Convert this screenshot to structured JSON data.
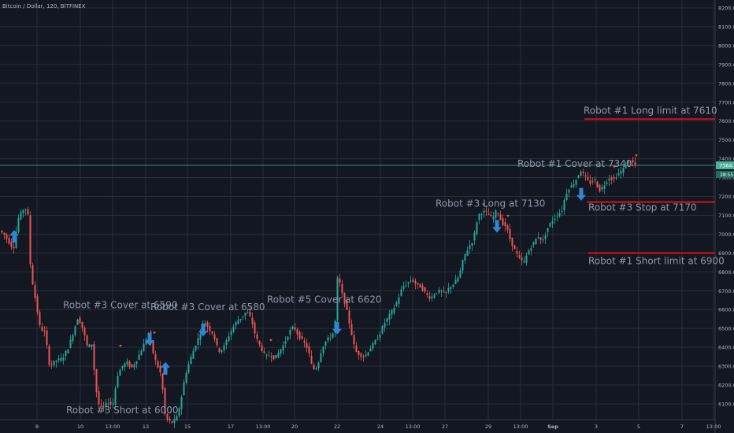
{
  "header": {
    "title": "Bitcoin / Dollar, 120, BITFINEX"
  },
  "price_tags": {
    "last": "7364.9",
    "secondary": "38:55"
  },
  "colors": {
    "background": "#131722",
    "grid": "#2a2e39",
    "up": "#26a69a",
    "down": "#ef5350",
    "price_line": "#4caf9a",
    "level_line": "#d80f17",
    "arrow": "#2f87d4",
    "annotation_text": "#8d96a6",
    "axis_text": "#b2b5be"
  },
  "chart_data": {
    "type": "candlestick",
    "title": "Bitcoin / Dollar, 120, BITFINEX",
    "ylim": [
      6000,
      8250
    ],
    "y_ticks": [
      "6100.0",
      "6200.0",
      "6300.0",
      "6400.0",
      "6500.0",
      "6600.0",
      "6700.0",
      "6800.0",
      "6900.0",
      "7000.0",
      "7100.0",
      "7200.0",
      "7300.0",
      "7400.0",
      "7500.0",
      "7600.0",
      "7700.0",
      "7800.0",
      "7900.0",
      "8000.0",
      "8100.0",
      "8200.0"
    ],
    "x_ticks": [
      "8",
      "10",
      "13:00",
      "13",
      "15",
      "17",
      "13:00",
      "20",
      "22",
      "24",
      "13:00",
      "27",
      "29",
      "13:00",
      "Sep",
      "3",
      "5",
      "7",
      "13:00"
    ],
    "last_price": 7364.9,
    "price_path": [
      [
        0,
        7020
      ],
      [
        6,
        7000
      ],
      [
        12,
        6960
      ],
      [
        18,
        6920
      ],
      [
        24,
        7080
      ],
      [
        30,
        7130
      ],
      [
        36,
        7140
      ],
      [
        40,
        6800
      ],
      [
        46,
        6650
      ],
      [
        52,
        6500
      ],
      [
        58,
        6480
      ],
      [
        64,
        6300
      ],
      [
        72,
        6330
      ],
      [
        80,
        6340
      ],
      [
        88,
        6400
      ],
      [
        94,
        6480
      ],
      [
        100,
        6560
      ],
      [
        106,
        6500
      ],
      [
        112,
        6400
      ],
      [
        118,
        6420
      ],
      [
        122,
        6200
      ],
      [
        126,
        6100
      ],
      [
        132,
        6080
      ],
      [
        138,
        6110
      ],
      [
        144,
        6090
      ],
      [
        150,
        6250
      ],
      [
        156,
        6300
      ],
      [
        162,
        6320
      ],
      [
        168,
        6290
      ],
      [
        174,
        6330
      ],
      [
        180,
        6380
      ],
      [
        186,
        6440
      ],
      [
        190,
        6480
      ],
      [
        196,
        6360
      ],
      [
        202,
        6290
      ],
      [
        206,
        6250
      ],
      [
        210,
        6050
      ],
      [
        214,
        6010
      ],
      [
        220,
        6000
      ],
      [
        226,
        6030
      ],
      [
        232,
        6150
      ],
      [
        236,
        6250
      ],
      [
        242,
        6330
      ],
      [
        248,
        6400
      ],
      [
        254,
        6460
      ],
      [
        260,
        6540
      ],
      [
        266,
        6500
      ],
      [
        272,
        6470
      ],
      [
        278,
        6380
      ],
      [
        284,
        6390
      ],
      [
        290,
        6450
      ],
      [
        296,
        6500
      ],
      [
        302,
        6540
      ],
      [
        308,
        6560
      ],
      [
        314,
        6590
      ],
      [
        320,
        6550
      ],
      [
        326,
        6450
      ],
      [
        332,
        6400
      ],
      [
        338,
        6350
      ],
      [
        344,
        6360
      ],
      [
        350,
        6340
      ],
      [
        356,
        6380
      ],
      [
        362,
        6420
      ],
      [
        368,
        6480
      ],
      [
        374,
        6510
      ],
      [
        380,
        6460
      ],
      [
        386,
        6430
      ],
      [
        392,
        6390
      ],
      [
        398,
        6280
      ],
      [
        404,
        6300
      ],
      [
        410,
        6400
      ],
      [
        416,
        6440
      ],
      [
        422,
        6460
      ],
      [
        426,
        6500
      ],
      [
        430,
        6800
      ],
      [
        434,
        6700
      ],
      [
        440,
        6620
      ],
      [
        446,
        6500
      ],
      [
        452,
        6380
      ],
      [
        458,
        6360
      ],
      [
        464,
        6350
      ],
      [
        470,
        6390
      ],
      [
        476,
        6420
      ],
      [
        482,
        6460
      ],
      [
        488,
        6520
      ],
      [
        494,
        6560
      ],
      [
        500,
        6600
      ],
      [
        506,
        6650
      ],
      [
        512,
        6720
      ],
      [
        518,
        6740
      ],
      [
        524,
        6760
      ],
      [
        530,
        6730
      ],
      [
        536,
        6720
      ],
      [
        542,
        6680
      ],
      [
        548,
        6660
      ],
      [
        554,
        6690
      ],
      [
        560,
        6700
      ],
      [
        566,
        6680
      ],
      [
        572,
        6720
      ],
      [
        578,
        6740
      ],
      [
        584,
        6780
      ],
      [
        590,
        6880
      ],
      [
        596,
        6930
      ],
      [
        602,
        6970
      ],
      [
        608,
        7100
      ],
      [
        614,
        7120
      ],
      [
        620,
        7110
      ],
      [
        626,
        7080
      ],
      [
        632,
        7130
      ],
      [
        638,
        7060
      ],
      [
        644,
        7040
      ],
      [
        648,
        6980
      ],
      [
        654,
        6920
      ],
      [
        660,
        6870
      ],
      [
        666,
        6850
      ],
      [
        672,
        6910
      ],
      [
        678,
        6950
      ],
      [
        684,
        6990
      ],
      [
        690,
        6960
      ],
      [
        696,
        7030
      ],
      [
        702,
        7070
      ],
      [
        708,
        7100
      ],
      [
        714,
        7120
      ],
      [
        718,
        7190
      ],
      [
        722,
        7240
      ],
      [
        728,
        7260
      ],
      [
        734,
        7300
      ],
      [
        738,
        7340
      ],
      [
        744,
        7300
      ],
      [
        750,
        7270
      ],
      [
        756,
        7290
      ],
      [
        762,
        7230
      ],
      [
        768,
        7260
      ],
      [
        774,
        7300
      ],
      [
        780,
        7290
      ],
      [
        786,
        7320
      ],
      [
        792,
        7340
      ],
      [
        798,
        7390
      ],
      [
        804,
        7380
      ],
      [
        808,
        7364.9
      ]
    ],
    "levels": [
      {
        "label": "Robot #1 Long limit at 7610",
        "price": 7610
      },
      {
        "label": "Robot #3 Stop at 7170",
        "price": 7170
      },
      {
        "label": "Robot #1 Short limit at 6900",
        "price": 6900
      }
    ],
    "annotations": [
      {
        "label": "Robot #3 Cover at 6590",
        "price": 6590,
        "arrow": "up",
        "arrow_price": 6500
      },
      {
        "label": "Robot #3 Cover at 6580",
        "price": 6580,
        "arrow": "up",
        "arrow_price": 6550
      },
      {
        "label": "Robot #5 Cover at 6620",
        "price": 6620,
        "arrow": "up",
        "arrow_price": 6560
      },
      {
        "label": "Robot #3 Long at 7130",
        "price": 7130,
        "arrow": "up",
        "arrow_price": 7100
      },
      {
        "label": "Robot #1 Cover at 7340",
        "price": 7340,
        "arrow": "up",
        "arrow_price": 7270
      },
      {
        "label": "Robot #3 Short at 6000",
        "price": 6000,
        "arrow": "down",
        "arrow_price": 6230
      },
      {
        "label": "",
        "price": 6900,
        "arrow": "down",
        "arrow_price": 6930
      }
    ]
  }
}
